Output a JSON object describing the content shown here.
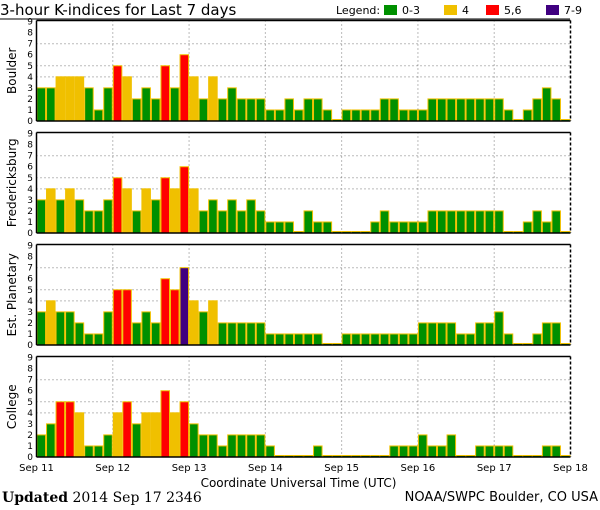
{
  "chart_data": {
    "type": "bar",
    "title": "3-hour K-indices for Last 7 days",
    "xlabel": "Coordinate Universal Time (UTC)",
    "ylim": [
      0,
      9
    ],
    "yticks": [
      "0",
      "1",
      "2",
      "3",
      "4",
      "5",
      "6",
      "7",
      "8",
      "9"
    ],
    "xticks": [
      "Sep 11",
      "Sep 12",
      "Sep 13",
      "Sep 14",
      "Sep 15",
      "Sep 16",
      "Sep 17",
      "Sep 18"
    ],
    "grid_levels": [
      4,
      5,
      7
    ],
    "legend": {
      "label": "Legend:",
      "entries": [
        {
          "label": "0-3",
          "color": "#009000"
        },
        {
          "label": "4",
          "color": "#f0c000"
        },
        {
          "label": "5,6",
          "color": "#ff0000"
        },
        {
          "label": "7-9",
          "color": "#400080"
        }
      ]
    },
    "series": [
      {
        "name": "Boulder",
        "values": [
          3,
          3,
          4,
          4,
          4,
          3,
          1,
          3,
          5,
          4,
          2,
          3,
          2,
          5,
          3,
          6,
          4,
          2,
          4,
          2,
          3,
          2,
          2,
          2,
          1,
          1,
          2,
          1,
          2,
          2,
          1,
          0,
          1,
          1,
          1,
          1,
          2,
          2,
          1,
          1,
          1,
          2,
          2,
          2,
          2,
          2,
          2,
          2,
          2,
          1,
          0,
          1,
          2,
          3,
          2,
          0
        ]
      },
      {
        "name": "Fredericksburg",
        "values": [
          3,
          4,
          3,
          4,
          3,
          2,
          2,
          3,
          5,
          4,
          2,
          4,
          3,
          5,
          4,
          6,
          4,
          2,
          3,
          2,
          3,
          2,
          3,
          2,
          1,
          1,
          1,
          0,
          2,
          1,
          1,
          0,
          0,
          0,
          0,
          1,
          2,
          1,
          1,
          1,
          1,
          2,
          2,
          2,
          2,
          2,
          2,
          2,
          2,
          0,
          0,
          1,
          2,
          1,
          2,
          0
        ]
      },
      {
        "name": "Est. Planetary",
        "values": [
          3,
          4,
          3,
          3,
          2,
          1,
          1,
          3,
          5,
          5,
          2,
          3,
          2,
          6,
          5,
          7,
          4,
          3,
          4,
          2,
          2,
          2,
          2,
          2,
          1,
          1,
          1,
          1,
          1,
          1,
          0,
          0,
          1,
          1,
          1,
          1,
          1,
          1,
          1,
          1,
          2,
          2,
          2,
          2,
          1,
          1,
          2,
          2,
          3,
          1,
          0,
          0,
          1,
          2,
          2,
          0
        ]
      },
      {
        "name": "College",
        "values": [
          2,
          3,
          5,
          5,
          4,
          1,
          1,
          2,
          4,
          5,
          3,
          4,
          4,
          6,
          4,
          5,
          3,
          2,
          2,
          1,
          2,
          2,
          2,
          2,
          1,
          0,
          0,
          0,
          0,
          1,
          0,
          0,
          0,
          0,
          0,
          0,
          0,
          1,
          1,
          1,
          2,
          1,
          1,
          2,
          0,
          0,
          1,
          1,
          1,
          1,
          0,
          0,
          0,
          1,
          1,
          0
        ]
      }
    ]
  },
  "footer": {
    "updated_label": "Updated",
    "updated_value": "2014 Sep 17 2346",
    "source": "NOAA/SWPC Boulder, CO USA"
  }
}
